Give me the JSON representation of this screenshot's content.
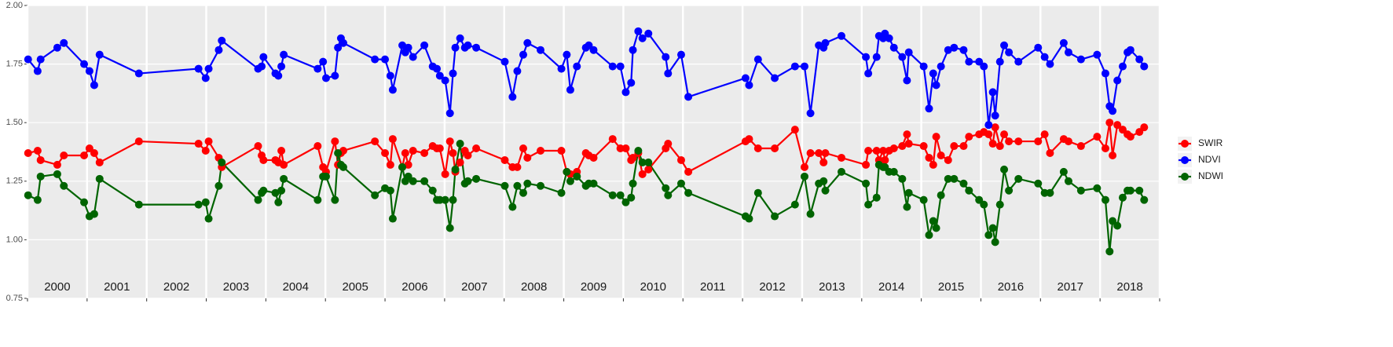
{
  "chart_data": {
    "type": "line",
    "x": [
      2000.01,
      2000.17,
      2000.22,
      2000.5,
      2000.61,
      2000.95,
      2001.04,
      2001.12,
      2001.21,
      2001.87,
      2002.87,
      2002.99,
      2003.04,
      2003.21,
      2003.26,
      2003.87,
      2003.93,
      2003.96,
      2004.16,
      2004.21,
      2004.26,
      2004.3,
      2004.87,
      2004.96,
      2005.01,
      2005.16,
      2005.21,
      2005.26,
      2005.3,
      2005.83,
      2006.0,
      2006.09,
      2006.13,
      2006.29,
      2006.34,
      2006.39,
      2006.47,
      2006.66,
      2006.8,
      2006.87,
      2006.92,
      2007.01,
      2007.09,
      2007.14,
      2007.18,
      2007.26,
      2007.34,
      2007.39,
      2007.53,
      2008.01,
      2008.14,
      2008.22,
      2008.32,
      2008.39,
      2008.61,
      2008.96,
      2009.05,
      2009.11,
      2009.22,
      2009.37,
      2009.42,
      2009.5,
      2009.82,
      2009.95,
      2010.04,
      2010.13,
      2010.16,
      2010.25,
      2010.32,
      2010.42,
      2010.71,
      2010.75,
      2010.97,
      2011.09,
      2012.05,
      2012.11,
      2012.26,
      2012.54,
      2012.88,
      2013.04,
      2013.14,
      2013.28,
      2013.36,
      2013.39,
      2013.66,
      2014.07,
      2014.11,
      2014.25,
      2014.29,
      2014.36,
      2014.39,
      2014.46,
      2014.54,
      2014.68,
      2014.76,
      2014.79,
      2015.04,
      2015.13,
      2015.2,
      2015.25,
      2015.33,
      2015.45,
      2015.55,
      2015.71,
      2015.8,
      2015.97,
      2016.05,
      2016.13,
      2016.2,
      2016.24,
      2016.32,
      2016.39,
      2016.47,
      2016.63,
      2016.96,
      2017.07,
      2017.16,
      2017.39,
      2017.47,
      2017.68,
      2017.95,
      2018.09,
      2018.16,
      2018.21,
      2018.29,
      2018.38,
      2018.46,
      2018.51,
      2018.66,
      2018.74
    ],
    "series": [
      {
        "name": "SWIR",
        "color": "#ff0000",
        "values": [
          1.37,
          1.38,
          1.34,
          1.32,
          1.36,
          1.36,
          1.39,
          1.37,
          1.33,
          1.42,
          1.41,
          1.38,
          1.42,
          1.35,
          1.31,
          1.4,
          1.36,
          1.34,
          1.34,
          1.33,
          1.38,
          1.32,
          1.4,
          1.31,
          1.29,
          1.42,
          1.32,
          1.37,
          1.38,
          1.42,
          1.37,
          1.32,
          1.43,
          1.31,
          1.37,
          1.32,
          1.38,
          1.37,
          1.4,
          1.39,
          1.39,
          1.28,
          1.42,
          1.37,
          1.29,
          1.33,
          1.38,
          1.36,
          1.39,
          1.34,
          1.31,
          1.31,
          1.39,
          1.35,
          1.38,
          1.38,
          1.29,
          1.28,
          1.29,
          1.37,
          1.36,
          1.35,
          1.43,
          1.39,
          1.39,
          1.34,
          1.35,
          1.37,
          1.28,
          1.3,
          1.39,
          1.41,
          1.34,
          1.29,
          1.42,
          1.43,
          1.39,
          1.39,
          1.47,
          1.31,
          1.37,
          1.37,
          1.33,
          1.37,
          1.35,
          1.32,
          1.38,
          1.38,
          1.34,
          1.38,
          1.34,
          1.38,
          1.39,
          1.4,
          1.45,
          1.41,
          1.4,
          1.35,
          1.32,
          1.44,
          1.36,
          1.34,
          1.4,
          1.4,
          1.44,
          1.45,
          1.46,
          1.45,
          1.41,
          1.48,
          1.4,
          1.45,
          1.42,
          1.42,
          1.42,
          1.45,
          1.37,
          1.43,
          1.42,
          1.4,
          1.44,
          1.39,
          1.5,
          1.36,
          1.49,
          1.47,
          1.45,
          1.44,
          1.46,
          1.48
        ]
      },
      {
        "name": "NDVI",
        "color": "#0000ff",
        "values": [
          1.77,
          1.72,
          1.77,
          1.82,
          1.84,
          1.75,
          1.72,
          1.66,
          1.79,
          1.71,
          1.73,
          1.69,
          1.73,
          1.81,
          1.85,
          1.73,
          1.74,
          1.78,
          1.71,
          1.7,
          1.74,
          1.79,
          1.73,
          1.76,
          1.69,
          1.7,
          1.82,
          1.86,
          1.84,
          1.77,
          1.77,
          1.7,
          1.64,
          1.83,
          1.8,
          1.82,
          1.78,
          1.83,
          1.74,
          1.73,
          1.7,
          1.68,
          1.54,
          1.71,
          1.82,
          1.86,
          1.82,
          1.83,
          1.82,
          1.76,
          1.61,
          1.72,
          1.79,
          1.84,
          1.81,
          1.73,
          1.79,
          1.64,
          1.74,
          1.82,
          1.83,
          1.81,
          1.74,
          1.74,
          1.63,
          1.67,
          1.81,
          1.89,
          1.86,
          1.88,
          1.78,
          1.71,
          1.79,
          1.61,
          1.69,
          1.66,
          1.77,
          1.69,
          1.74,
          1.74,
          1.54,
          1.83,
          1.82,
          1.84,
          1.87,
          1.78,
          1.71,
          1.78,
          1.87,
          1.86,
          1.88,
          1.86,
          1.82,
          1.78,
          1.68,
          1.8,
          1.74,
          1.56,
          1.71,
          1.66,
          1.74,
          1.81,
          1.82,
          1.81,
          1.76,
          1.76,
          1.74,
          1.49,
          1.63,
          1.53,
          1.76,
          1.83,
          1.8,
          1.76,
          1.82,
          1.78,
          1.75,
          1.84,
          1.8,
          1.77,
          1.79,
          1.71,
          1.57,
          1.55,
          1.68,
          1.74,
          1.8,
          1.81,
          1.77,
          1.74
        ]
      },
      {
        "name": "NDWI",
        "color": "#006400",
        "values": [
          1.19,
          1.17,
          1.27,
          1.28,
          1.23,
          1.16,
          1.1,
          1.11,
          1.26,
          1.15,
          1.15,
          1.16,
          1.09,
          1.23,
          1.33,
          1.17,
          1.2,
          1.21,
          1.2,
          1.16,
          1.21,
          1.26,
          1.17,
          1.27,
          1.27,
          1.17,
          1.37,
          1.32,
          1.31,
          1.19,
          1.22,
          1.21,
          1.09,
          1.31,
          1.25,
          1.27,
          1.25,
          1.25,
          1.21,
          1.17,
          1.17,
          1.17,
          1.05,
          1.17,
          1.3,
          1.41,
          1.24,
          1.25,
          1.26,
          1.23,
          1.14,
          1.23,
          1.2,
          1.24,
          1.23,
          1.2,
          1.29,
          1.25,
          1.27,
          1.23,
          1.24,
          1.24,
          1.19,
          1.19,
          1.16,
          1.18,
          1.24,
          1.38,
          1.33,
          1.33,
          1.22,
          1.19,
          1.24,
          1.2,
          1.1,
          1.09,
          1.2,
          1.1,
          1.15,
          1.27,
          1.11,
          1.24,
          1.25,
          1.21,
          1.29,
          1.24,
          1.15,
          1.18,
          1.32,
          1.31,
          1.31,
          1.29,
          1.29,
          1.26,
          1.14,
          1.2,
          1.17,
          1.02,
          1.08,
          1.05,
          1.19,
          1.26,
          1.26,
          1.24,
          1.21,
          1.17,
          1.15,
          1.02,
          1.05,
          0.99,
          1.15,
          1.3,
          1.21,
          1.26,
          1.24,
          1.2,
          1.2,
          1.29,
          1.25,
          1.21,
          1.22,
          1.17,
          0.95,
          1.08,
          1.06,
          1.18,
          1.21,
          1.21,
          1.21,
          1.17
        ]
      }
    ],
    "xlim": [
      2000,
      2019
    ],
    "xticks": [
      2000,
      2001,
      2002,
      2003,
      2004,
      2005,
      2006,
      2007,
      2008,
      2009,
      2010,
      2011,
      2012,
      2013,
      2014,
      2015,
      2016,
      2017,
      2018,
      2019
    ],
    "year_labels": [
      2000,
      2001,
      2002,
      2003,
      2004,
      2005,
      2006,
      2007,
      2008,
      2009,
      2010,
      2011,
      2012,
      2013,
      2014,
      2015,
      2016,
      2017,
      2018
    ],
    "ylim": [
      0.75,
      2
    ],
    "yticks": [
      0.75,
      {
        "value": 1,
        "label": "1.00"
      },
      1.25,
      {
        "value": 1.5,
        "label": "1.50"
      },
      1.75,
      {
        "value": 2,
        "label": "2.00"
      }
    ],
    "grid": true,
    "legend": "right"
  }
}
